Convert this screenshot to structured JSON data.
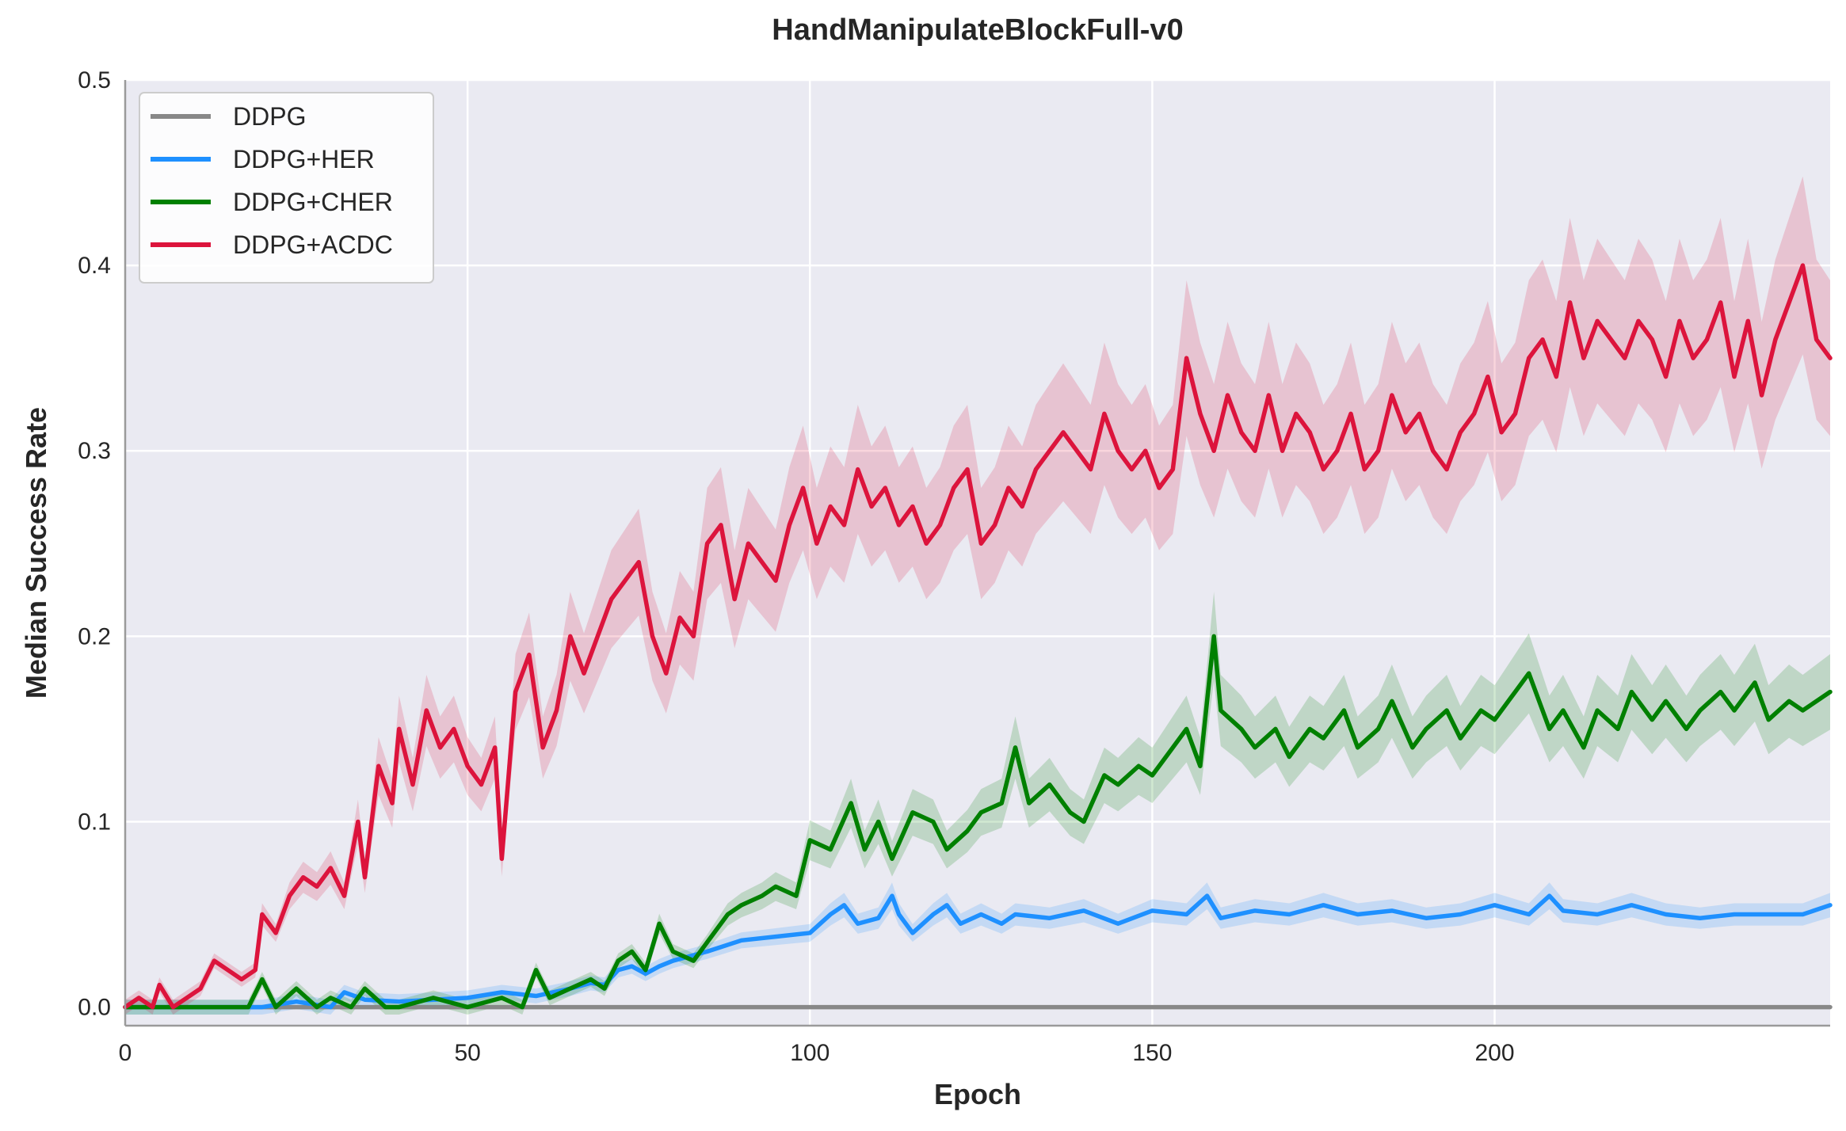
{
  "chart_data": {
    "type": "line",
    "title": "HandManipulateBlockFull-v0",
    "xlabel": "Epoch",
    "ylabel": "Median Success Rate",
    "xlim": [
      0,
      249
    ],
    "ylim": [
      -0.01,
      0.5
    ],
    "xticks": [
      0,
      50,
      100,
      150,
      200
    ],
    "yticks": [
      0.0,
      0.1,
      0.2,
      0.3,
      0.4,
      0.5
    ],
    "grid": true,
    "legend": "top-left",
    "series": [
      {
        "name": "DDPG",
        "color": "#888888",
        "shaded_band": false,
        "x": [
          0,
          249
        ],
        "y": [
          0.0,
          0.0
        ]
      },
      {
        "name": "DDPG+HER",
        "color": "#1E90FF",
        "shaded_band": true,
        "x": [
          0,
          10,
          20,
          25,
          30,
          32,
          35,
          40,
          45,
          50,
          55,
          60,
          65,
          68,
          70,
          72,
          74,
          76,
          78,
          80,
          85,
          90,
          95,
          100,
          103,
          105,
          107,
          110,
          112,
          113,
          115,
          118,
          120,
          122,
          125,
          128,
          130,
          135,
          140,
          145,
          150,
          155,
          158,
          160,
          165,
          170,
          175,
          180,
          185,
          190,
          195,
          200,
          205,
          208,
          210,
          215,
          220,
          225,
          230,
          235,
          240,
          245,
          249
        ],
        "y": [
          0.0,
          0.0,
          0.0,
          0.003,
          0.0,
          0.008,
          0.004,
          0.003,
          0.004,
          0.005,
          0.008,
          0.006,
          0.01,
          0.013,
          0.012,
          0.02,
          0.022,
          0.018,
          0.022,
          0.025,
          0.03,
          0.036,
          0.038,
          0.04,
          0.05,
          0.055,
          0.045,
          0.048,
          0.06,
          0.05,
          0.04,
          0.05,
          0.055,
          0.045,
          0.05,
          0.045,
          0.05,
          0.048,
          0.052,
          0.045,
          0.052,
          0.05,
          0.06,
          0.048,
          0.052,
          0.05,
          0.055,
          0.05,
          0.052,
          0.048,
          0.05,
          0.055,
          0.05,
          0.06,
          0.052,
          0.05,
          0.055,
          0.05,
          0.048,
          0.05,
          0.05,
          0.05,
          0.055
        ]
      },
      {
        "name": "DDPG+CHER",
        "color": "#008000",
        "shaded_band": true,
        "x": [
          0,
          18,
          20,
          22,
          25,
          28,
          30,
          33,
          35,
          38,
          40,
          45,
          50,
          55,
          58,
          60,
          62,
          65,
          68,
          70,
          72,
          74,
          76,
          78,
          80,
          83,
          85,
          88,
          90,
          93,
          95,
          98,
          100,
          103,
          106,
          108,
          110,
          112,
          115,
          118,
          120,
          123,
          125,
          128,
          130,
          132,
          135,
          138,
          140,
          143,
          145,
          148,
          150,
          153,
          155,
          157,
          159,
          160,
          163,
          165,
          168,
          170,
          173,
          175,
          178,
          180,
          183,
          185,
          188,
          190,
          193,
          195,
          198,
          200,
          203,
          205,
          208,
          210,
          213,
          215,
          218,
          220,
          223,
          225,
          228,
          230,
          233,
          235,
          238,
          240,
          243,
          245,
          249
        ],
        "y": [
          0.0,
          0.0,
          0.015,
          0.0,
          0.01,
          0.0,
          0.005,
          0.0,
          0.01,
          0.0,
          0.0,
          0.005,
          0.0,
          0.005,
          0.0,
          0.02,
          0.005,
          0.01,
          0.015,
          0.01,
          0.025,
          0.03,
          0.02,
          0.045,
          0.03,
          0.025,
          0.035,
          0.05,
          0.055,
          0.06,
          0.065,
          0.06,
          0.09,
          0.085,
          0.11,
          0.085,
          0.1,
          0.08,
          0.105,
          0.1,
          0.085,
          0.095,
          0.105,
          0.11,
          0.14,
          0.11,
          0.12,
          0.105,
          0.1,
          0.125,
          0.12,
          0.13,
          0.125,
          0.14,
          0.15,
          0.13,
          0.2,
          0.16,
          0.15,
          0.14,
          0.15,
          0.135,
          0.15,
          0.145,
          0.16,
          0.14,
          0.15,
          0.165,
          0.14,
          0.15,
          0.16,
          0.145,
          0.16,
          0.155,
          0.17,
          0.18,
          0.15,
          0.16,
          0.14,
          0.16,
          0.15,
          0.17,
          0.155,
          0.165,
          0.15,
          0.16,
          0.17,
          0.16,
          0.175,
          0.155,
          0.165,
          0.16,
          0.17
        ]
      },
      {
        "name": "DDPG+ACDC",
        "color": "#DC143C",
        "shaded_band": true,
        "x": [
          0,
          2,
          4,
          5,
          7,
          9,
          11,
          13,
          15,
          17,
          19,
          20,
          22,
          24,
          26,
          28,
          30,
          32,
          34,
          35,
          37,
          39,
          40,
          42,
          44,
          46,
          48,
          50,
          52,
          54,
          55,
          57,
          59,
          61,
          63,
          65,
          67,
          69,
          71,
          73,
          75,
          77,
          79,
          81,
          83,
          85,
          87,
          89,
          91,
          93,
          95,
          97,
          99,
          101,
          103,
          105,
          107,
          109,
          111,
          113,
          115,
          117,
          119,
          121,
          123,
          125,
          127,
          129,
          131,
          133,
          135,
          137,
          139,
          141,
          143,
          145,
          147,
          149,
          151,
          153,
          155,
          157,
          159,
          161,
          163,
          165,
          167,
          169,
          171,
          173,
          175,
          177,
          179,
          181,
          183,
          185,
          187,
          189,
          191,
          193,
          195,
          197,
          199,
          201,
          203,
          205,
          207,
          209,
          211,
          213,
          215,
          217,
          219,
          221,
          223,
          225,
          227,
          229,
          231,
          233,
          235,
          237,
          239,
          241,
          243,
          245,
          247,
          249
        ],
        "y": [
          0.0,
          0.005,
          0.0,
          0.012,
          0.0,
          0.005,
          0.01,
          0.025,
          0.02,
          0.015,
          0.02,
          0.05,
          0.04,
          0.06,
          0.07,
          0.065,
          0.075,
          0.06,
          0.1,
          0.07,
          0.13,
          0.11,
          0.15,
          0.12,
          0.16,
          0.14,
          0.15,
          0.13,
          0.12,
          0.14,
          0.08,
          0.17,
          0.19,
          0.14,
          0.16,
          0.2,
          0.18,
          0.2,
          0.22,
          0.23,
          0.24,
          0.2,
          0.18,
          0.21,
          0.2,
          0.25,
          0.26,
          0.22,
          0.25,
          0.24,
          0.23,
          0.26,
          0.28,
          0.25,
          0.27,
          0.26,
          0.29,
          0.27,
          0.28,
          0.26,
          0.27,
          0.25,
          0.26,
          0.28,
          0.29,
          0.25,
          0.26,
          0.28,
          0.27,
          0.29,
          0.3,
          0.31,
          0.3,
          0.29,
          0.32,
          0.3,
          0.29,
          0.3,
          0.28,
          0.29,
          0.35,
          0.32,
          0.3,
          0.33,
          0.31,
          0.3,
          0.33,
          0.3,
          0.32,
          0.31,
          0.29,
          0.3,
          0.32,
          0.29,
          0.3,
          0.33,
          0.31,
          0.32,
          0.3,
          0.29,
          0.31,
          0.32,
          0.34,
          0.31,
          0.32,
          0.35,
          0.36,
          0.34,
          0.38,
          0.35,
          0.37,
          0.36,
          0.35,
          0.37,
          0.36,
          0.34,
          0.37,
          0.35,
          0.36,
          0.38,
          0.34,
          0.37,
          0.33,
          0.36,
          0.38,
          0.4,
          0.36,
          0.35
        ]
      }
    ]
  }
}
